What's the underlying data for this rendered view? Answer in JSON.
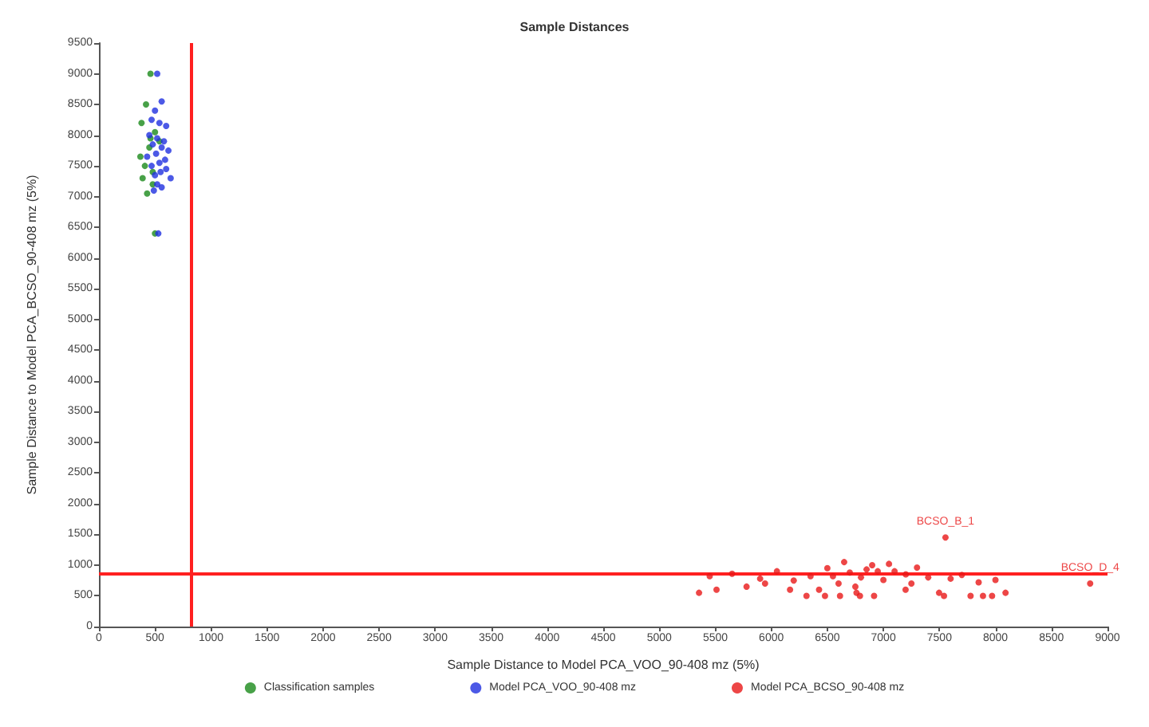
{
  "chart_data": {
    "type": "scatter",
    "title": "Sample Distances",
    "xlabel": "Sample Distance to Model PCA_VOO_90-408 mz (5%)",
    "ylabel": "Sample Distance to Model PCA_BCSO_90-408 mz (5%)",
    "xlim": [
      0,
      9000
    ],
    "ylim": [
      0,
      9500
    ],
    "xticks": [
      0,
      500,
      1000,
      1500,
      2000,
      2500,
      3000,
      3500,
      4000,
      4500,
      5000,
      5500,
      6000,
      6500,
      7000,
      7500,
      8000,
      8500,
      9000
    ],
    "yticks": [
      0,
      500,
      1000,
      1500,
      2000,
      2500,
      3000,
      3500,
      4000,
      4500,
      5000,
      5500,
      6000,
      6500,
      7000,
      7500,
      8000,
      8500,
      9000,
      9500
    ],
    "grid": false,
    "legend": "bottom",
    "marker": "circle",
    "series": [
      {
        "name": "Classification samples",
        "color": "#1a8a1a",
        "x": [
          460,
          420,
          380,
          500,
          540,
          450,
          370,
          410,
          480,
          390,
          480,
          430,
          500,
          460
        ],
        "values": [
          9000,
          8500,
          8200,
          8050,
          7900,
          7800,
          7650,
          7500,
          7400,
          7300,
          7200,
          7050,
          6400,
          7950
        ]
      },
      {
        "name": "Model PCA_VOO_90-408 mz",
        "color": "#1f2fe0",
        "x": [
          520,
          560,
          500,
          470,
          540,
          600,
          450,
          520,
          580,
          480,
          560,
          620,
          510,
          430,
          590,
          540,
          470,
          600,
          550,
          500,
          640,
          520,
          560,
          490,
          530
        ],
        "values": [
          9000,
          8550,
          8400,
          8250,
          8200,
          8150,
          8000,
          7950,
          7900,
          7850,
          7800,
          7750,
          7700,
          7650,
          7600,
          7550,
          7500,
          7450,
          7400,
          7350,
          7300,
          7200,
          7150,
          7100,
          6400
        ]
      },
      {
        "name": "Model PCA_BCSO_90-408 mz",
        "color": "#e81818",
        "x": [
          5355,
          5511,
          5779,
          5944,
          6167,
          6314,
          6426,
          6479,
          6613,
          6760,
          6791,
          6917,
          7198,
          7497,
          7541,
          7554,
          7778,
          7889,
          7970,
          8090,
          8845,
          5450,
          5650,
          5900,
          6050,
          6200,
          6350,
          6500,
          6600,
          6700,
          6800,
          6900,
          7000,
          7100,
          7200,
          7300,
          7400,
          7600,
          7700,
          7850,
          8000,
          6650,
          6750,
          6950,
          7050,
          7250,
          6550,
          6850
        ],
        "values": [
          550,
          600,
          650,
          700,
          600,
          500,
          600,
          500,
          500,
          550,
          500,
          500,
          600,
          550,
          500,
          1450,
          500,
          500,
          500,
          550,
          700,
          820,
          860,
          780,
          900,
          750,
          820,
          950,
          700,
          880,
          800,
          1000,
          760,
          900,
          850,
          960,
          800,
          780,
          840,
          720,
          760,
          1050,
          650,
          900,
          1020,
          700,
          820,
          930
        ]
      }
    ],
    "ref_lines": [
      {
        "axis": "x",
        "value": 820,
        "color": "#ff2020"
      },
      {
        "axis": "y",
        "value": 870,
        "color": "#ff2020"
      }
    ],
    "annotations": [
      {
        "text": "BCSO_B_1",
        "x": 7554,
        "y": 1450
      },
      {
        "text": "BCSO_D_4",
        "x": 8845,
        "y": 700
      }
    ]
  }
}
